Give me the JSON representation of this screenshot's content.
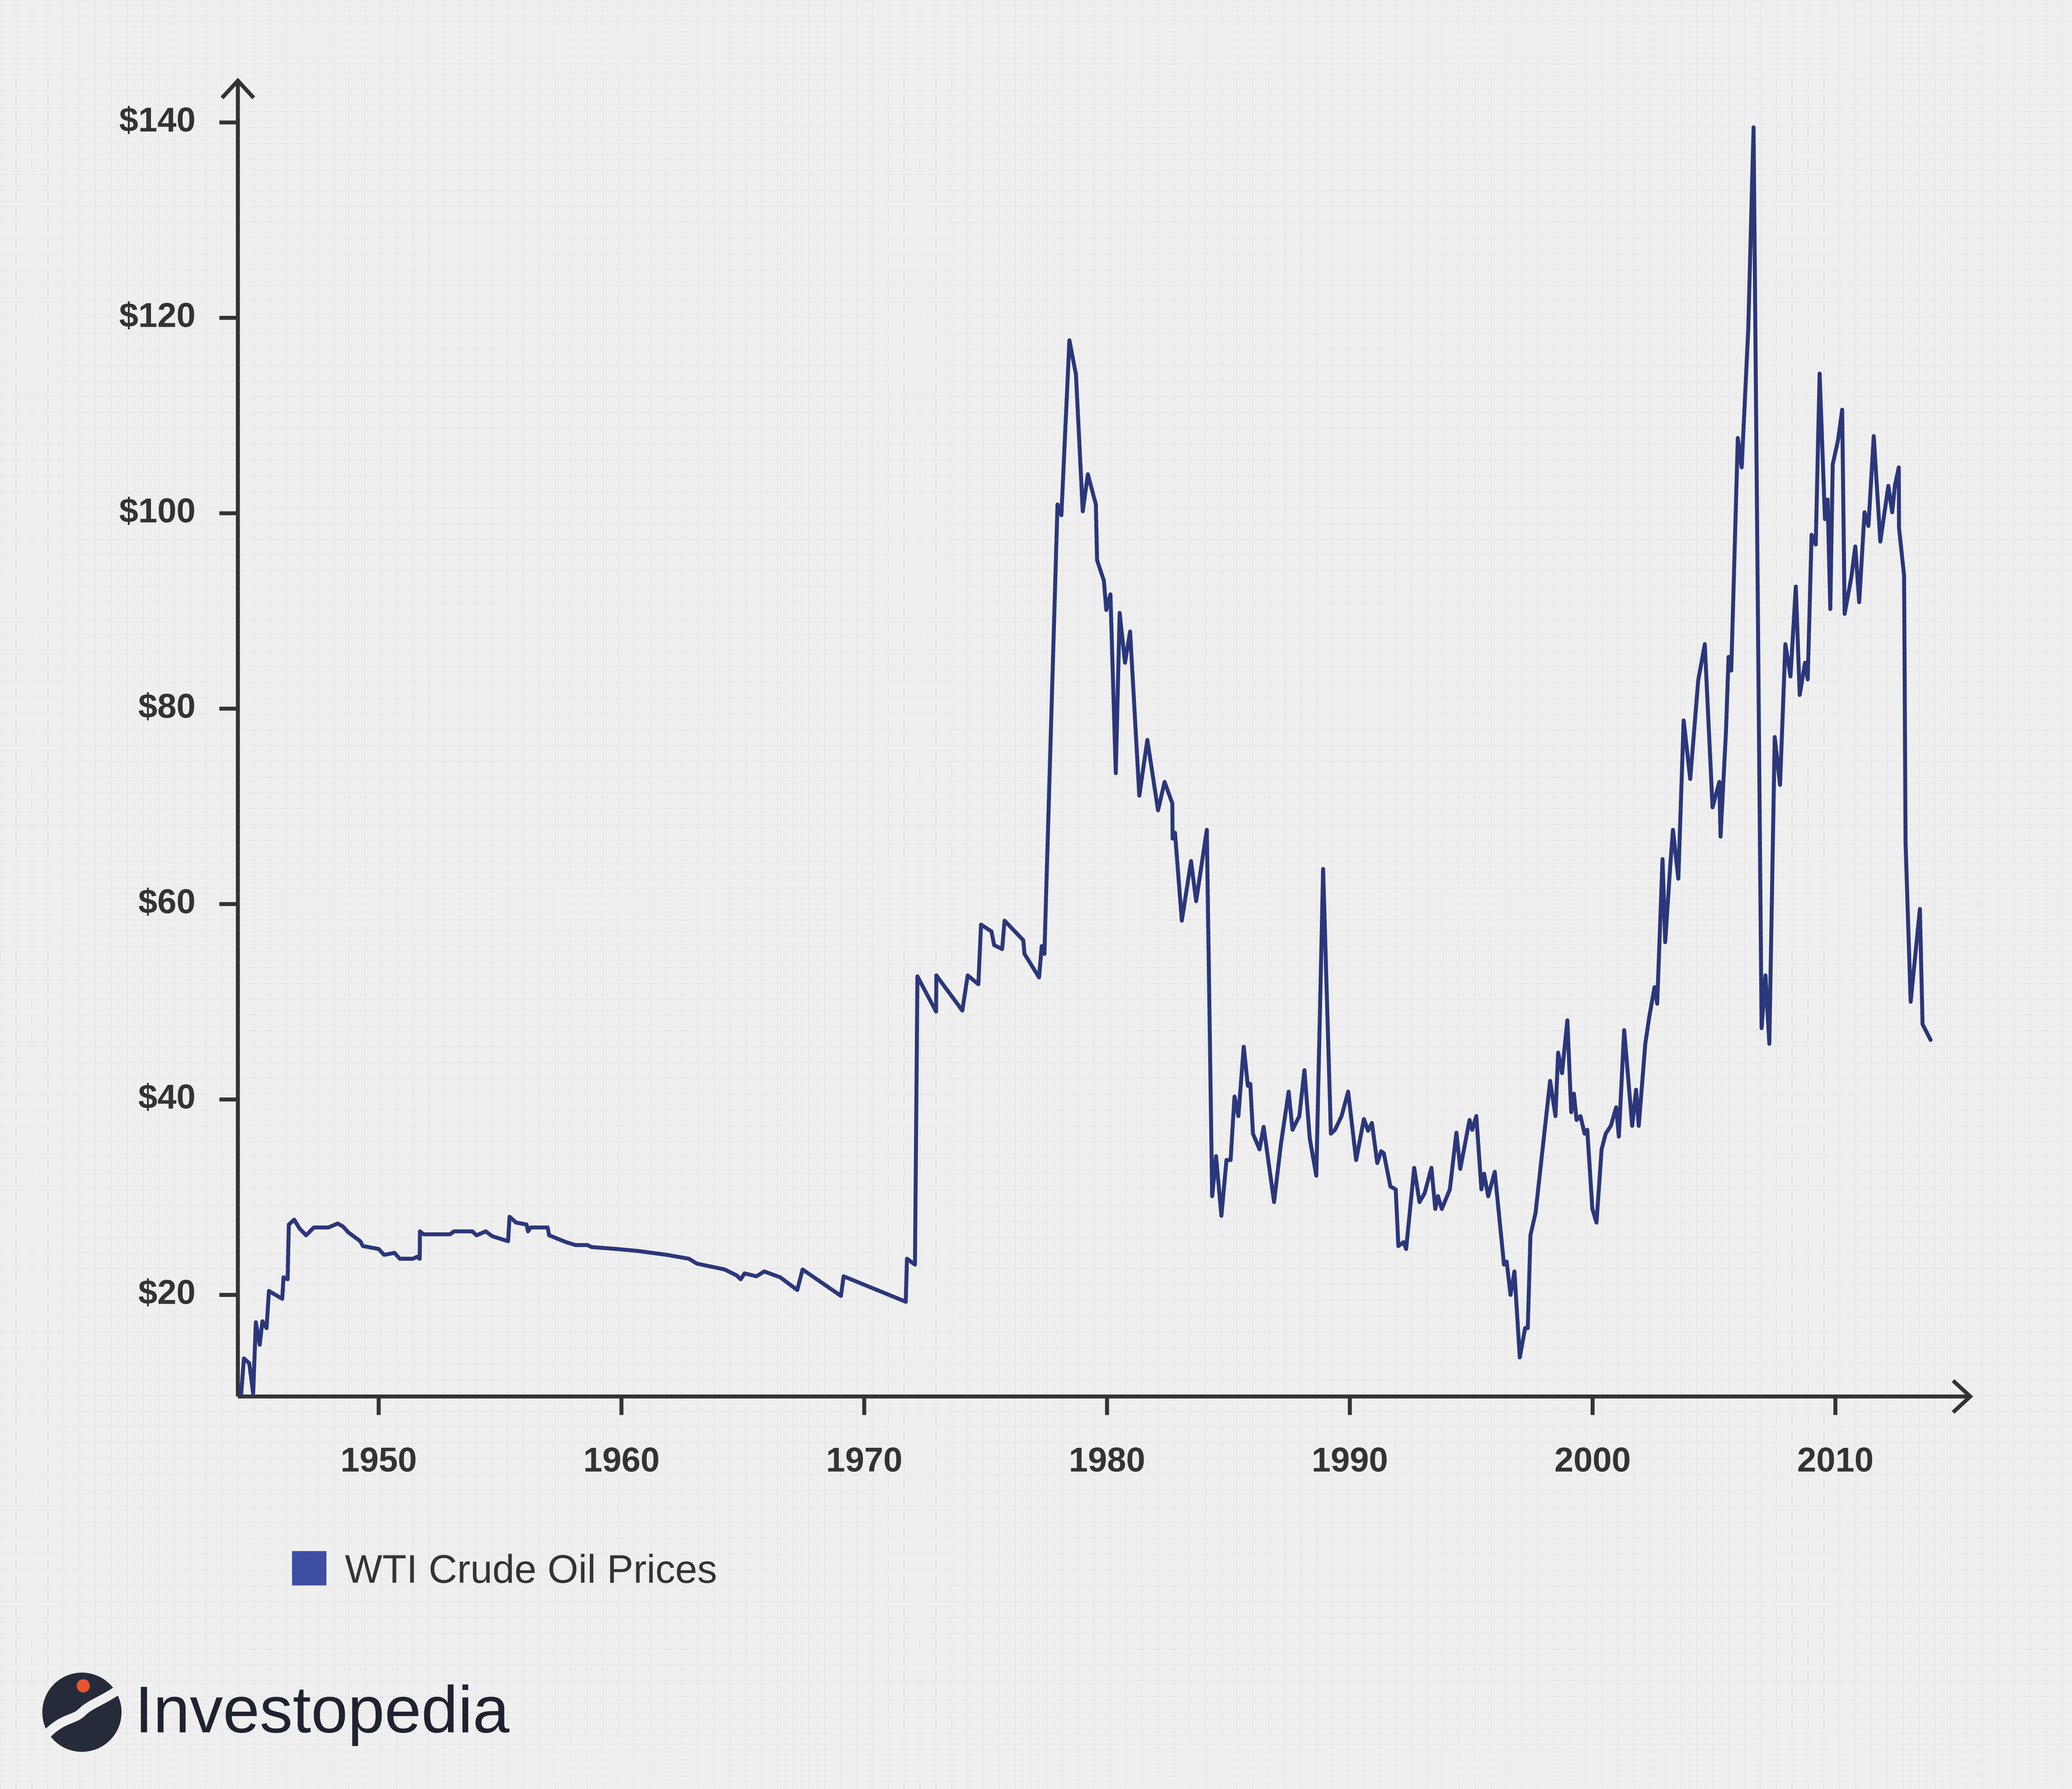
{
  "chart_data": {
    "type": "line",
    "x": [
      1944.34,
      1944.45,
      1944.67,
      1944.83,
      1944.94,
      1945.1,
      1945.21,
      1945.38,
      1945.48,
      1946.03,
      1946.08,
      1946.25,
      1946.3,
      1946.52,
      1946.74,
      1947.01,
      1947.33,
      1947.93,
      1948.31,
      1948.53,
      1948.75,
      1949.24,
      1949.35,
      1950.0,
      1950.22,
      1950.65,
      1950.87,
      1951.41,
      1951.58,
      1951.69,
      1951.7,
      1951.85,
      1952.94,
      1953.1,
      1953.86,
      1954.03,
      1954.41,
      1954.68,
      1955.33,
      1955.39,
      1955.66,
      1956.09,
      1956.15,
      1956.26,
      1956.96,
      1957.02,
      1957.72,
      1958.11,
      1958.6,
      1958.76,
      1959.79,
      1960.66,
      1961.86,
      1962.78,
      1963.11,
      1964.25,
      1964.74,
      1964.91,
      1965.07,
      1965.56,
      1965.88,
      1966.54,
      1967.24,
      1967.46,
      1969.04,
      1969.15,
      1971.71,
      1971.76,
      1972.09,
      1972.19,
      1972.96,
      1972.97,
      1974.04,
      1974.26,
      1974.7,
      1974.81,
      1975.24,
      1975.35,
      1975.68,
      1975.78,
      1976.55,
      1976.6,
      1977.2,
      1977.31,
      1977.42,
      1977.96,
      1978.12,
      1978.45,
      1978.72,
      1979.0,
      1979.21,
      1979.54,
      1979.59,
      1979.87,
      1979.97,
      1980.14,
      1980.36,
      1980.52,
      1980.74,
      1980.95,
      1981.33,
      1981.66,
      1982.1,
      1982.37,
      1982.69,
      1982.7,
      1982.8,
      1983.08,
      1983.46,
      1983.67,
      1984.11,
      1984.33,
      1984.49,
      1984.71,
      1984.92,
      1985.09,
      1985.25,
      1985.41,
      1985.63,
      1985.8,
      1985.9,
      1986.01,
      1986.28,
      1986.45,
      1986.88,
      1987.16,
      1987.48,
      1987.64,
      1987.92,
      1988.13,
      1988.35,
      1988.62,
      1988.9,
      1989.22,
      1989.39,
      1989.66,
      1989.93,
      1990.26,
      1990.58,
      1990.75,
      1990.91,
      1991.13,
      1991.29,
      1991.4,
      1991.67,
      1991.89,
      1992.0,
      1992.21,
      1992.32,
      1992.65,
      1992.87,
      1993.08,
      1993.36,
      1993.52,
      1993.63,
      1993.79,
      1994.12,
      1994.39,
      1994.55,
      1994.93,
      1995.04,
      1995.21,
      1995.42,
      1995.53,
      1995.7,
      1995.97,
      1996.35,
      1996.46,
      1996.62,
      1996.78,
      1997.0,
      1997.22,
      1997.33,
      1997.44,
      1997.65,
      1998.25,
      1998.47,
      1998.58,
      1998.74,
      1998.96,
      1999.12,
      1999.23,
      1999.34,
      1999.5,
      1999.67,
      1999.78,
      1999.99,
      2000.16,
      2000.37,
      2000.54,
      2000.75,
      2000.97,
      2001.08,
      2001.3,
      2001.63,
      2001.79,
      2001.9,
      2002.17,
      2002.33,
      2002.55,
      2002.66,
      2002.88,
      2002.99,
      2003.2,
      2003.31,
      2003.53,
      2003.75,
      2004.02,
      2004.35,
      2004.62,
      2004.94,
      2005.22,
      2005.27,
      2005.49,
      2005.6,
      2005.71,
      2005.98,
      2006.14,
      2006.41,
      2006.63,
      2006.96,
      2007.12,
      2007.28,
      2007.5,
      2007.72,
      2007.94,
      2008.15,
      2008.37,
      2008.53,
      2008.75,
      2008.86,
      2009.02,
      2009.19,
      2009.35,
      2009.57,
      2009.68,
      2009.79,
      2009.89,
      2010.11,
      2010.28,
      2010.38,
      2010.66,
      2010.82,
      2010.98,
      2011.2,
      2011.36,
      2011.58,
      2011.85,
      2012.18,
      2012.34,
      2012.45,
      2012.61,
      2012.62,
      2012.83,
      2012.89,
      2013.1,
      2013.48,
      2013.59,
      2013.92
    ],
    "series": [
      {
        "name": "WTI Crude Oil Prices",
        "color": "#2b377a",
        "legend_color": "#3d4ea3",
        "values": [
          9.9,
          13.5,
          13.0,
          9.9,
          17.2,
          14.9,
          17.3,
          16.6,
          20.4,
          19.6,
          21.8,
          21.6,
          27.2,
          27.7,
          26.8,
          26.1,
          26.9,
          26.9,
          27.3,
          27.0,
          26.4,
          25.5,
          25.0,
          24.7,
          24.1,
          24.3,
          23.7,
          23.7,
          23.9,
          23.7,
          26.5,
          26.2,
          26.2,
          26.5,
          26.5,
          26.1,
          26.5,
          26.0,
          25.5,
          28.0,
          27.4,
          27.2,
          26.5,
          26.9,
          26.9,
          26.1,
          25.4,
          25.1,
          25.1,
          24.9,
          24.7,
          24.5,
          24.1,
          23.7,
          23.2,
          22.6,
          22.0,
          21.6,
          22.2,
          21.9,
          22.4,
          21.8,
          20.5,
          22.6,
          19.9,
          21.9,
          19.3,
          23.7,
          23.1,
          52.6,
          49.0,
          52.7,
          49.1,
          52.7,
          51.8,
          57.9,
          57.2,
          55.8,
          55.4,
          58.3,
          56.3,
          54.9,
          52.5,
          55.7,
          54.9,
          100.9,
          99.8,
          117.7,
          114.2,
          100.2,
          104.0,
          100.9,
          95.2,
          93.1,
          90.1,
          91.7,
          73.4,
          89.8,
          84.7,
          87.9,
          71.1,
          76.8,
          69.6,
          72.5,
          70.3,
          66.7,
          67.3,
          58.3,
          64.4,
          60.3,
          67.6,
          30.1,
          34.2,
          28.1,
          33.8,
          33.8,
          40.3,
          38.3,
          45.4,
          41.4,
          41.6,
          36.5,
          34.9,
          37.2,
          29.5,
          35.4,
          40.8,
          36.9,
          38.3,
          43.0,
          36.0,
          32.2,
          63.6,
          36.5,
          36.9,
          38.3,
          40.8,
          33.8,
          38.0,
          36.8,
          37.6,
          33.5,
          34.7,
          34.5,
          31.1,
          30.8,
          25.0,
          25.4,
          24.7,
          33.0,
          29.5,
          30.4,
          33.0,
          28.8,
          30.1,
          28.8,
          30.8,
          36.6,
          32.9,
          37.9,
          36.9,
          38.3,
          30.8,
          32.4,
          30.1,
          32.6,
          23.1,
          23.4,
          20.0,
          22.4,
          13.6,
          16.6,
          16.6,
          26.1,
          28.4,
          41.9,
          38.3,
          44.8,
          42.7,
          48.1,
          38.7,
          40.6,
          37.9,
          38.3,
          36.5,
          36.9,
          28.8,
          27.4,
          34.9,
          36.5,
          37.3,
          39.2,
          36.2,
          47.1,
          37.3,
          41.0,
          37.3,
          45.7,
          48.4,
          51.5,
          49.8,
          64.6,
          56.1,
          64.0,
          67.6,
          62.6,
          78.8,
          72.8,
          82.9,
          86.6,
          69.9,
          72.5,
          66.9,
          77.5,
          85.3,
          83.9,
          107.7,
          104.7,
          118.8,
          139.5,
          47.3,
          52.7,
          45.7,
          77.1,
          72.2,
          86.6,
          83.3,
          92.5,
          81.4,
          84.7,
          83.0,
          97.8,
          96.8,
          114.3,
          99.4,
          101.4,
          90.2,
          105.0,
          107.5,
          110.6,
          89.7,
          93.5,
          96.6,
          90.9,
          100.1,
          98.7,
          107.9,
          97.1,
          102.8,
          100.1,
          102.8,
          104.7,
          98.5,
          93.6,
          66.3,
          50.0,
          59.5,
          47.7,
          46.1
        ]
      }
    ],
    "xlim": [
      1944.2,
      2015.5
    ],
    "ylim": [
      9.6,
      144
    ],
    "xticks": [
      1950,
      1960,
      1970,
      1980,
      1990,
      2000,
      2010
    ],
    "yticks": [
      {
        "value": 20,
        "label": "$20"
      },
      {
        "value": 40,
        "label": "$40"
      },
      {
        "value": 60,
        "label": "$60"
      },
      {
        "value": 80,
        "label": "$80"
      },
      {
        "value": 100,
        "label": "$100"
      },
      {
        "value": 120,
        "label": "$120"
      },
      {
        "value": 140,
        "label": "$140"
      }
    ],
    "grid": false
  },
  "branding": {
    "text": "Investopedia"
  }
}
